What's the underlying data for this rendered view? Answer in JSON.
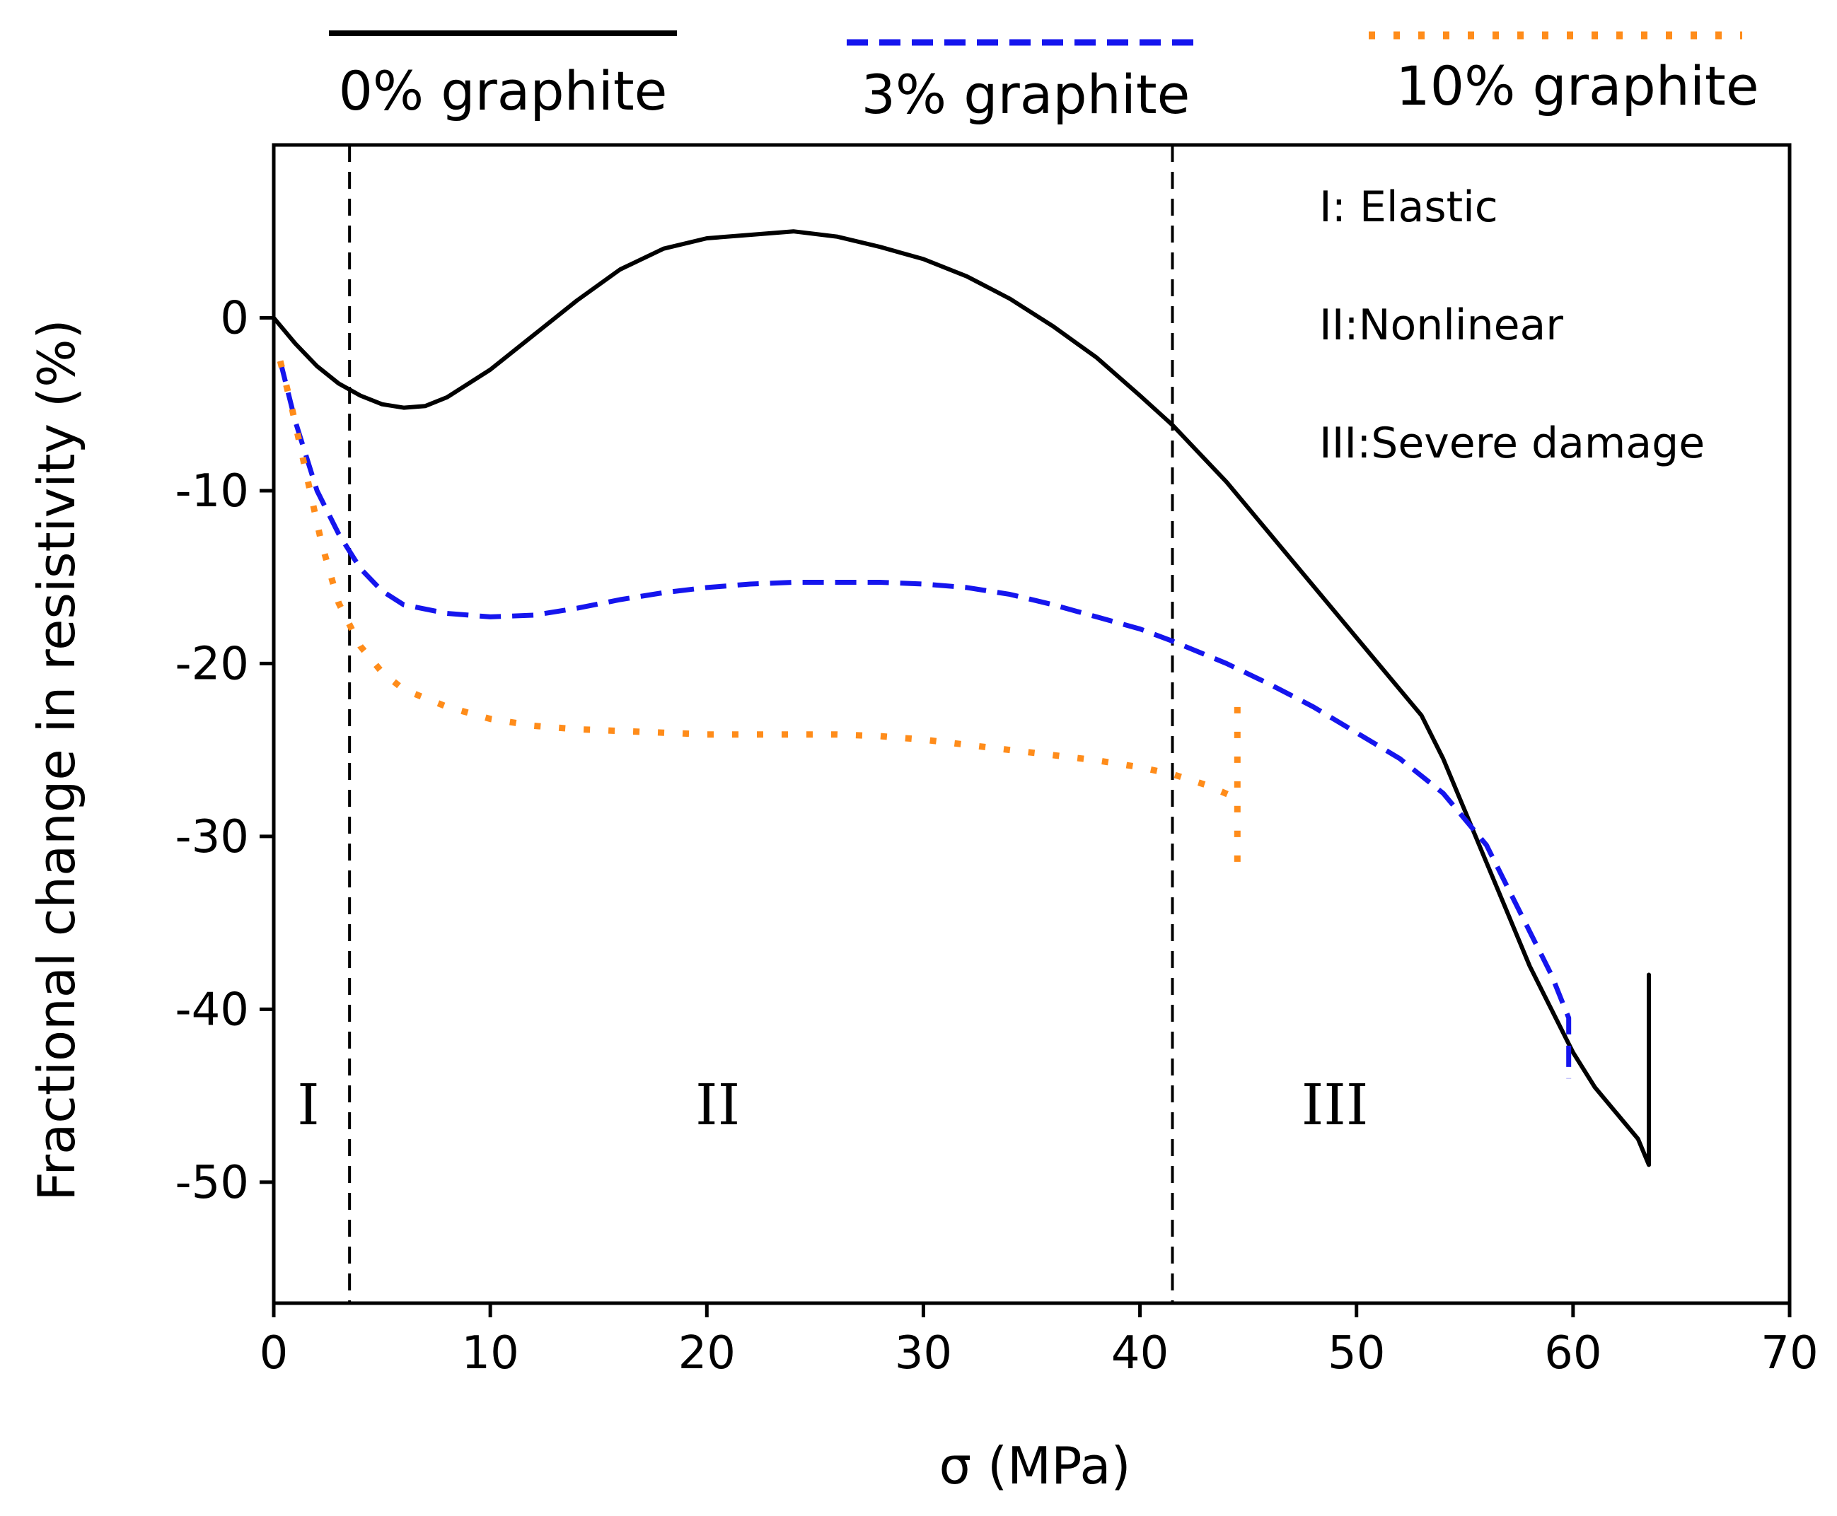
{
  "chart_data": {
    "type": "line",
    "title": "",
    "xlabel": "σ (MPa)",
    "ylabel": "Fractional change in resistivity (%)",
    "xlim": [
      0,
      70
    ],
    "ylim": [
      -57,
      10
    ],
    "xticks": [
      0,
      10,
      20,
      30,
      40,
      50,
      60,
      70
    ],
    "yticks": [
      0,
      -10,
      -20,
      -30,
      -40,
      -50
    ],
    "legend_position": "top, outside plot",
    "series": [
      {
        "name": "0% graphite",
        "color": "#000000",
        "style": "solid",
        "x": [
          0,
          1,
          2,
          3,
          4,
          5,
          6,
          7,
          8,
          10,
          12,
          14,
          16,
          18,
          20,
          22,
          24,
          26,
          28,
          30,
          32,
          34,
          36,
          38,
          40,
          41.5,
          44,
          46,
          48,
          50,
          52,
          53,
          54,
          55,
          56,
          57,
          58,
          59,
          60,
          61,
          62,
          63,
          63.5,
          63.5,
          63.5
        ],
        "y": [
          0,
          -1.5,
          -2.8,
          -3.8,
          -4.5,
          -5,
          -5.2,
          -5.1,
          -4.6,
          -3,
          -1,
          1,
          2.8,
          4,
          4.6,
          4.8,
          5,
          4.7,
          4.1,
          3.4,
          2.4,
          1.1,
          -0.5,
          -2.3,
          -4.5,
          -6.2,
          -9.5,
          -12.5,
          -15.5,
          -18.5,
          -21.5,
          -23,
          -25.5,
          -28.5,
          -31.5,
          -34.5,
          -37.5,
          -40,
          -42.5,
          -44.5,
          -46,
          -47.5,
          -49,
          -45,
          -38
        ]
      },
      {
        "name": "3% graphite",
        "color": "#1515ee",
        "style": "dashed",
        "x": [
          0.3,
          1,
          2,
          3,
          4,
          5,
          6,
          8,
          10,
          12,
          14,
          16,
          18,
          20,
          22,
          24,
          26,
          28,
          30,
          32,
          34,
          36,
          38,
          40,
          41.5,
          44,
          46,
          48,
          50,
          52,
          54,
          56,
          57,
          58,
          59,
          59.8,
          59.8
        ],
        "y": [
          -2.5,
          -6,
          -10,
          -12.5,
          -14.5,
          -15.8,
          -16.6,
          -17.1,
          -17.3,
          -17.2,
          -16.8,
          -16.3,
          -15.9,
          -15.6,
          -15.4,
          -15.3,
          -15.3,
          -15.3,
          -15.4,
          -15.6,
          -16,
          -16.6,
          -17.3,
          -18,
          -18.7,
          -20,
          -21.2,
          -22.5,
          -24,
          -25.5,
          -27.5,
          -30.5,
          -33,
          -35.5,
          -38,
          -40.5,
          -44
        ]
      },
      {
        "name": "10% graphite",
        "color": "#ff8c1a",
        "style": "dotted",
        "x": [
          0.3,
          0.8,
          1.5,
          2.2,
          3,
          4,
          5,
          6,
          8,
          10,
          12,
          14,
          16,
          18,
          20,
          22,
          24,
          26,
          28,
          30,
          32,
          34,
          36,
          38,
          40,
          41.5,
          43,
          44.5,
          44.5,
          44.5
        ],
        "y": [
          -2.5,
          -5,
          -9,
          -13,
          -16.5,
          -19,
          -20.5,
          -21.5,
          -22.5,
          -23.2,
          -23.6,
          -23.8,
          -23.9,
          -24,
          -24.1,
          -24.1,
          -24.1,
          -24.1,
          -24.2,
          -24.4,
          -24.7,
          -25,
          -25.3,
          -25.6,
          -26,
          -26.4,
          -27,
          -27.8,
          -32,
          -22.5
        ]
      }
    ],
    "reference_lines": [
      {
        "axis": "x",
        "value": 3.5,
        "style": "dashed"
      },
      {
        "axis": "x",
        "value": 41.5,
        "style": "dashed"
      }
    ],
    "region_labels": [
      {
        "text": "I",
        "x": 1.6,
        "y": -45.5
      },
      {
        "text": "II",
        "x": 20.5,
        "y": -45.5
      },
      {
        "text": "III",
        "x": 49,
        "y": -45.5
      }
    ],
    "annotations": [
      "I: Elastic",
      "II:Nonlinear",
      "III:Severe damage"
    ]
  }
}
